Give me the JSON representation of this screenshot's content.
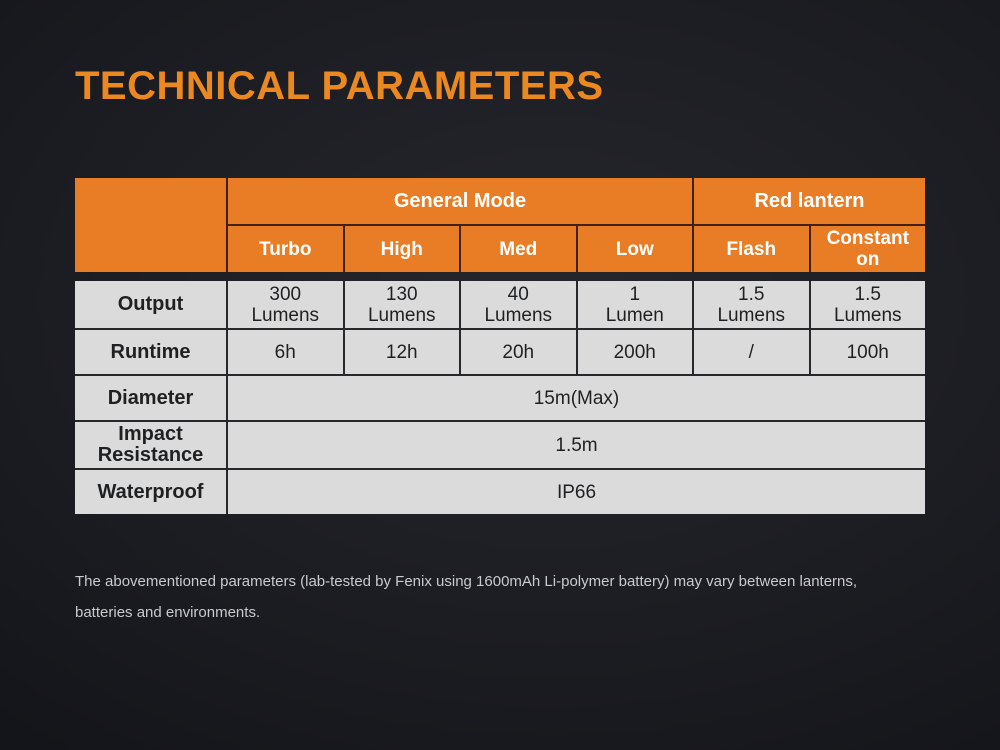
{
  "title": "TECHNICAL PARAMETERS",
  "colors": {
    "title_orange": "#EC8820",
    "header_orange": "#E87D25",
    "header_text": "#FFFFFF",
    "body_cell_gray": "#DBDBDC",
    "body_text": "#1F2022",
    "background_dark": "#1B1C21",
    "footnote_text": "#C9CACD"
  },
  "table": {
    "corner_label": "",
    "groups": [
      {
        "label": "General Mode",
        "span": 4
      },
      {
        "label": "Red lantern",
        "span": 2
      }
    ],
    "modes": [
      "Turbo",
      "High",
      "Med",
      "Low",
      "Flash",
      "Constant\non"
    ],
    "rows": [
      {
        "label": "Output",
        "values": [
          "300\nLumens",
          "130\nLumens",
          "40\nLumens",
          "1\nLumen",
          "1.5\nLumens",
          "1.5\nLumens"
        ]
      },
      {
        "label": "Runtime",
        "values": [
          "6h",
          "12h",
          "20h",
          "200h",
          "/",
          "100h"
        ]
      },
      {
        "label": "Diameter",
        "merged_value": "15m(Max)"
      },
      {
        "label": "Impact Resistance",
        "merged_value": "1.5m"
      },
      {
        "label": "Waterproof",
        "merged_value": "IP66"
      }
    ]
  },
  "footnote": {
    "line1": "The abovementioned parameters (lab-tested by Fenix using 1600mAh Li-polymer battery) may vary between lanterns,",
    "line2": "batteries and environments."
  }
}
